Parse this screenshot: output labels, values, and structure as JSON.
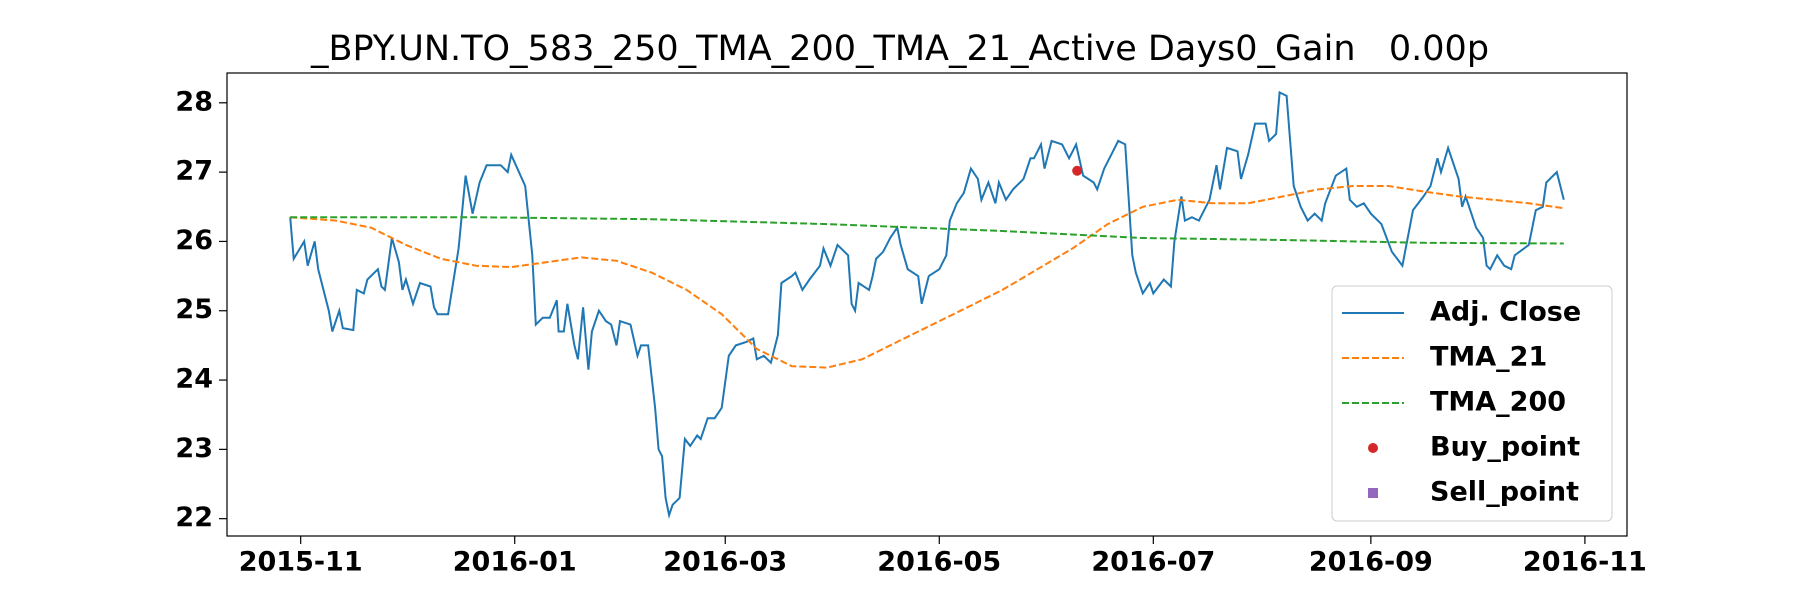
{
  "chart_data": {
    "type": "line",
    "title": "_BPY.UN.TO_583_250_TMA_200_TMA_21_Active Days0_Gain   0.00p",
    "xlim": [
      -21,
      378
    ],
    "ylim": [
      21.75,
      28.43
    ],
    "xticks": [
      {
        "value": 0,
        "label": "2015-11"
      },
      {
        "value": 61,
        "label": "2016-01"
      },
      {
        "value": 121,
        "label": "2016-03"
      },
      {
        "value": 182,
        "label": "2016-05"
      },
      {
        "value": 243,
        "label": "2016-07"
      },
      {
        "value": 305,
        "label": "2016-09"
      },
      {
        "value": 366,
        "label": "2016-11"
      }
    ],
    "yticks": [
      22,
      23,
      24,
      25,
      26,
      27,
      28
    ],
    "grid": false,
    "legend": "lower right",
    "series": [
      {
        "name": "Adj. Close",
        "color": "#1f77b4",
        "style": "solid",
        "x": [
          -3,
          -2,
          1,
          2,
          4,
          5,
          8,
          9,
          11,
          12,
          15,
          16,
          18,
          19,
          22,
          23,
          24,
          26,
          28,
          29,
          30,
          32,
          34,
          37,
          38,
          39,
          42,
          45,
          47,
          49,
          51,
          53,
          57,
          59,
          60,
          64,
          66,
          67,
          69,
          71,
          73,
          73.5,
          75,
          76,
          78,
          79,
          80.5,
          82,
          83,
          85,
          87,
          88.5,
          90,
          91,
          94,
          96,
          97,
          99,
          101,
          102,
          103,
          104,
          105,
          106,
          108,
          109.5,
          111,
          113,
          114,
          116,
          118,
          120,
          122,
          124,
          127,
          129,
          130,
          132,
          134,
          136,
          137,
          140,
          141,
          143,
          145,
          148,
          149,
          151,
          153,
          156,
          157,
          158,
          159,
          162,
          163,
          164,
          166,
          168,
          170,
          171,
          173,
          176,
          177,
          179,
          182,
          184,
          185,
          187,
          189,
          191,
          193,
          194,
          196,
          198,
          199,
          201,
          203,
          206,
          208,
          209,
          211,
          212,
          214,
          217,
          219,
          221,
          223,
          226,
          227,
          229,
          232,
          233,
          235,
          237,
          238,
          240,
          242,
          243,
          246,
          248,
          249,
          251,
          252,
          254,
          256,
          259,
          261,
          262,
          264,
          267,
          268,
          270,
          272,
          275,
          276,
          278,
          279,
          281,
          283,
          285,
          287,
          289,
          291,
          292,
          295,
          298,
          299,
          301,
          303,
          305,
          308,
          311,
          314,
          317,
          320,
          322,
          324,
          325,
          327,
          330,
          331,
          332,
          335,
          337,
          338,
          339,
          341,
          343,
          345,
          346,
          350,
          352,
          354,
          355,
          358,
          360
        ],
        "values": [
          26.35,
          25.75,
          26.0,
          25.65,
          26.0,
          25.6,
          25.0,
          24.7,
          25.0,
          24.75,
          24.72,
          25.3,
          25.25,
          25.45,
          25.6,
          25.35,
          25.3,
          26.05,
          25.7,
          25.3,
          25.45,
          25.1,
          25.4,
          25.35,
          25.05,
          24.95,
          24.95,
          25.9,
          26.95,
          26.4,
          26.85,
          27.1,
          27.1,
          27.0,
          27.25,
          26.8,
          25.8,
          24.8,
          24.9,
          24.9,
          25.15,
          24.7,
          24.7,
          25.1,
          24.5,
          24.3,
          25.05,
          24.15,
          24.7,
          25.0,
          24.85,
          24.8,
          24.5,
          24.85,
          24.8,
          24.35,
          24.5,
          24.5,
          23.6,
          23.0,
          22.9,
          22.3,
          22.05,
          22.2,
          22.3,
          23.15,
          23.05,
          23.2,
          23.15,
          23.45,
          23.45,
          23.6,
          24.35,
          24.5,
          24.55,
          24.6,
          24.3,
          24.35,
          24.25,
          24.65,
          25.4,
          25.5,
          25.55,
          25.3,
          25.45,
          25.65,
          25.9,
          25.65,
          25.95,
          25.8,
          25.1,
          25.0,
          25.4,
          25.3,
          25.5,
          25.75,
          25.85,
          26.05,
          26.2,
          25.95,
          25.6,
          25.5,
          25.1,
          25.5,
          25.6,
          25.8,
          26.3,
          26.55,
          26.7,
          27.05,
          26.9,
          26.6,
          26.85,
          26.55,
          26.85,
          26.6,
          26.75,
          26.9,
          27.2,
          27.2,
          27.4,
          27.05,
          27.45,
          27.4,
          27.2,
          27.4,
          26.95,
          26.85,
          26.75,
          27.05,
          27.35,
          27.45,
          27.4,
          25.8,
          25.55,
          25.25,
          25.4,
          25.25,
          25.45,
          25.35,
          26.0,
          26.65,
          26.3,
          26.35,
          26.3,
          26.6,
          27.1,
          26.75,
          27.35,
          27.3,
          26.9,
          27.25,
          27.7,
          27.7,
          27.45,
          27.55,
          28.15,
          28.1,
          26.8,
          26.5,
          26.3,
          26.4,
          26.3,
          26.55,
          26.95,
          27.05,
          26.6,
          26.5,
          26.55,
          26.4,
          26.25,
          25.85,
          25.65,
          26.45,
          26.65,
          26.8,
          27.2,
          27.0,
          27.35,
          26.9,
          26.5,
          26.65,
          26.2,
          26.05,
          25.65,
          25.6,
          25.8,
          25.65,
          25.6,
          25.8,
          25.95,
          26.45,
          26.5,
          26.85,
          27.0,
          26.6
        ]
      },
      {
        "name": "TMA_21",
        "color": "#ff7f0e",
        "style": "dash",
        "x": [
          -3,
          10,
          20,
          30,
          40,
          50,
          60,
          70,
          80,
          90,
          100,
          110,
          120,
          130,
          140,
          150,
          160,
          170,
          180,
          190,
          200,
          210,
          220,
          230,
          240,
          250,
          260,
          270,
          280,
          290,
          300,
          310,
          320,
          330,
          340,
          350,
          360
        ],
        "values": [
          26.35,
          26.3,
          26.2,
          25.95,
          25.75,
          25.65,
          25.63,
          25.7,
          25.77,
          25.72,
          25.55,
          25.3,
          24.95,
          24.45,
          24.2,
          24.18,
          24.3,
          24.55,
          24.8,
          25.05,
          25.3,
          25.6,
          25.9,
          26.25,
          26.5,
          26.6,
          26.55,
          26.55,
          26.65,
          26.75,
          26.8,
          26.8,
          26.72,
          26.65,
          26.6,
          26.55,
          26.48
        ]
      },
      {
        "name": "TMA_200",
        "color": "#2ca02c",
        "style": "dash",
        "x": [
          -3,
          50,
          100,
          150,
          200,
          240,
          280,
          320,
          360
        ],
        "values": [
          26.35,
          26.35,
          26.32,
          26.25,
          26.15,
          26.05,
          26.02,
          25.98,
          25.97
        ]
      },
      {
        "name": "Buy_point",
        "color": "#d62728",
        "style": "circle",
        "x": [
          221.3
        ],
        "values": [
          27.02
        ]
      },
      {
        "name": "Sell_point",
        "color": "#9467bd",
        "style": "square",
        "x": [],
        "values": []
      }
    ]
  }
}
